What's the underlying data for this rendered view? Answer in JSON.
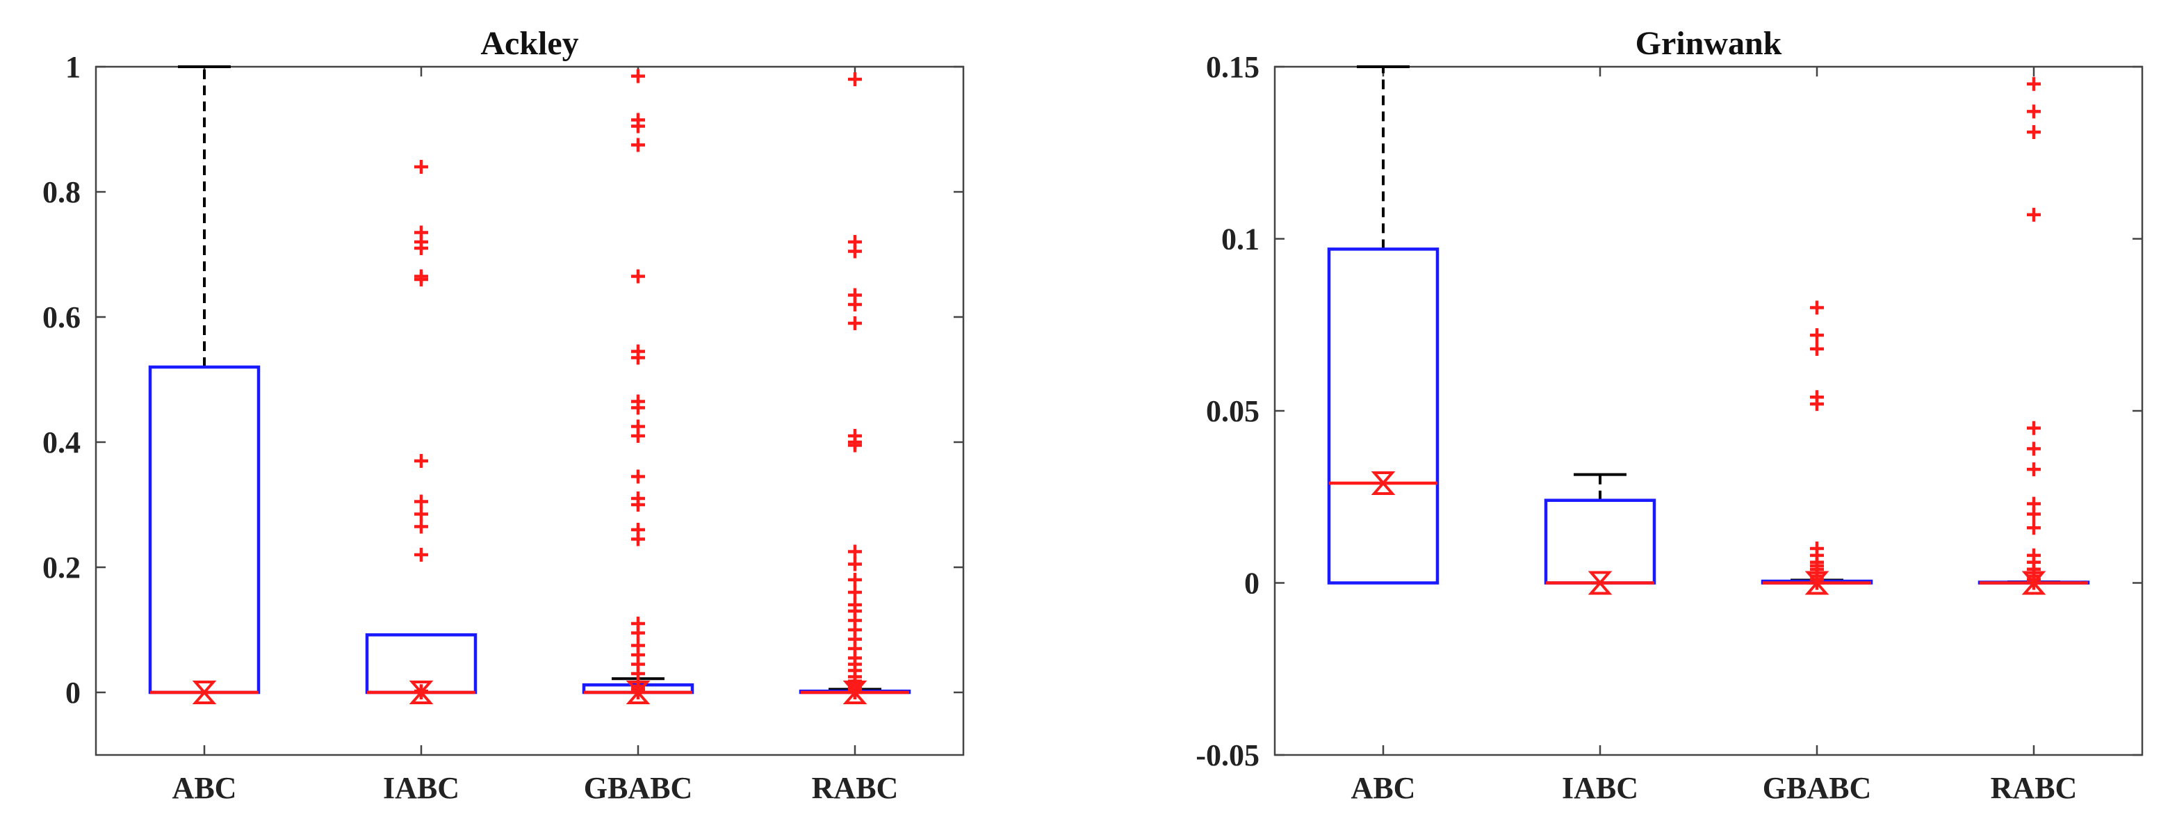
{
  "chart_data": [
    {
      "type": "box",
      "title": "Ackley",
      "xlabel": "",
      "ylabel": "",
      "ylim": [
        -0.1,
        1.0
      ],
      "yticks": [
        0,
        0.2,
        0.4,
        0.6,
        0.8,
        1
      ],
      "ytick_labels": [
        "0",
        "0.2",
        "0.4",
        "0.6",
        "0.8",
        "1"
      ],
      "categories": [
        "ABC",
        "IABC",
        "GBABC",
        "RABC"
      ],
      "boxes": [
        {
          "name": "ABC",
          "q1": 0.0,
          "median": 0.0,
          "q3": 0.52,
          "whisker_low": 0.0,
          "whisker_high": 1.0,
          "outliers": []
        },
        {
          "name": "IABC",
          "q1": 0.0,
          "median": 0.0,
          "q3": 0.092,
          "whisker_low": 0.0,
          "whisker_high": 0.092,
          "outliers": [
            0.84,
            0.735,
            0.72,
            0.71,
            0.665,
            0.66,
            0.37,
            0.305,
            0.285,
            0.265,
            0.22,
            0.002,
            0.0
          ]
        },
        {
          "name": "GBABC",
          "q1": 0.0,
          "median": 0.0,
          "q3": 0.012,
          "whisker_low": 0.0,
          "whisker_high": 0.022,
          "outliers": [
            0.985,
            0.915,
            0.905,
            0.875,
            0.665,
            0.545,
            0.535,
            0.465,
            0.455,
            0.425,
            0.41,
            0.345,
            0.31,
            0.3,
            0.26,
            0.245,
            0.11,
            0.095,
            0.075,
            0.06,
            0.045,
            0.03,
            0.01,
            0.005,
            0.0
          ]
        },
        {
          "name": "RABC",
          "q1": 0.0,
          "median": 0.0,
          "q3": 0.002,
          "whisker_low": 0.0,
          "whisker_high": 0.005,
          "outliers": [
            0.98,
            0.72,
            0.705,
            0.635,
            0.62,
            0.59,
            0.41,
            0.4,
            0.395,
            0.225,
            0.205,
            0.18,
            0.16,
            0.14,
            0.13,
            0.115,
            0.1,
            0.085,
            0.07,
            0.055,
            0.045,
            0.035,
            0.025,
            0.018,
            0.012,
            0.008,
            0.004,
            0.001,
            0.0
          ]
        }
      ],
      "mean_markers": [
        0.0,
        0.0,
        0.0,
        0.0
      ],
      "colors": {
        "box": "#1a1aff",
        "median": "#ff1a1a",
        "whisker": "#000000",
        "outlier": "#ff1a1a"
      }
    },
    {
      "type": "box",
      "title": "Grinwank",
      "xlabel": "",
      "ylabel": "",
      "ylim": [
        -0.05,
        0.15
      ],
      "yticks": [
        -0.05,
        0,
        0.05,
        0.1,
        0.15
      ],
      "ytick_labels": [
        "-0.05",
        "0",
        "0.05",
        "0.1",
        "0.15"
      ],
      "categories": [
        "ABC",
        "IABC",
        "GBABC",
        "RABC"
      ],
      "boxes": [
        {
          "name": "ABC",
          "q1": 0.0,
          "median": 0.029,
          "q3": 0.097,
          "whisker_low": 0.0,
          "whisker_high": 0.15,
          "outliers": []
        },
        {
          "name": "IABC",
          "q1": 0.0,
          "median": 0.0,
          "q3": 0.024,
          "whisker_low": 0.0,
          "whisker_high": 0.0315,
          "outliers": []
        },
        {
          "name": "GBABC",
          "q1": 0.0,
          "median": 0.0,
          "q3": 0.0005,
          "whisker_low": 0.0,
          "whisker_high": 0.0008,
          "outliers": [
            0.08,
            0.072,
            0.068,
            0.054,
            0.052,
            0.01,
            0.008,
            0.006,
            0.005,
            0.004,
            0.003,
            0.002,
            0.001,
            0.0
          ]
        },
        {
          "name": "RABC",
          "q1": 0.0,
          "median": 0.0,
          "q3": 0.0002,
          "whisker_low": 0.0,
          "whisker_high": 0.0003,
          "outliers": [
            0.145,
            0.137,
            0.131,
            0.107,
            0.045,
            0.039,
            0.033,
            0.023,
            0.02,
            0.016,
            0.008,
            0.006,
            0.004,
            0.003,
            0.002,
            0.001,
            0.0
          ]
        }
      ],
      "mean_markers": [
        0.029,
        0.0,
        0.0,
        0.0
      ],
      "colors": {
        "box": "#1a1aff",
        "median": "#ff1a1a",
        "whisker": "#000000",
        "outlier": "#ff1a1a"
      }
    }
  ]
}
